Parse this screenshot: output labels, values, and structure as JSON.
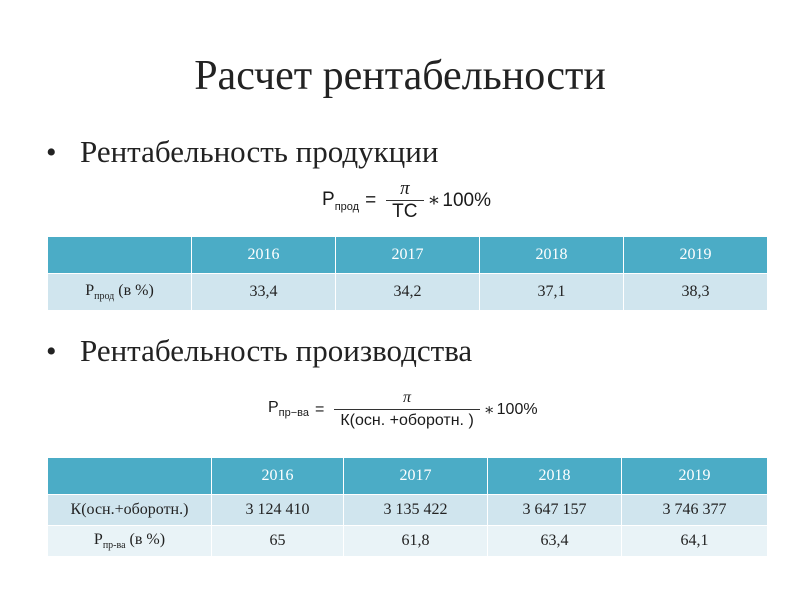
{
  "title": "Расчет рентабельности",
  "bullet_marker": "•",
  "section1": {
    "heading": "Рентабельность продукции",
    "formula": {
      "lhs_base": "Р",
      "lhs_sub": "прод",
      "equals": "=",
      "numerator": "π",
      "denominator": "ТС",
      "times": "∗",
      "percent": "100%"
    },
    "table": {
      "header": [
        "",
        "2016",
        "2017",
        "2018",
        "2019"
      ],
      "row_label_base": "Р",
      "row_label_sub": "прод",
      "row_label_suffix": " (в %)",
      "values": [
        "33,4",
        "34,2",
        "37,1",
        "38,3"
      ]
    }
  },
  "section2": {
    "heading": "Рентабельность производства",
    "formula": {
      "lhs_base": "Р",
      "lhs_sub": "пр−ва",
      "equals": "=",
      "numerator": "π",
      "denominator": "К(осн. +оборотн. )",
      "times": "∗",
      "percent": "100%"
    },
    "table": {
      "header": [
        "",
        "2016",
        "2017",
        "2018",
        "2019"
      ],
      "row1_label": "К(осн.+оборотн.)",
      "row1_values": [
        "3 124 410",
        "3 135 422",
        "3 647 157",
        "3 746 377"
      ],
      "row2_label_base": "Р",
      "row2_label_sub": "пр-ва",
      "row2_label_suffix": " (в %)",
      "row2_values": [
        "65",
        "61,8",
        "63,4",
        "64,1"
      ]
    }
  }
}
